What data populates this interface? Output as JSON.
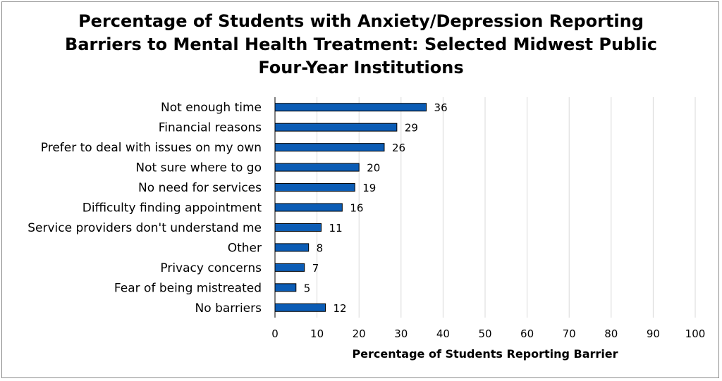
{
  "chart_data": {
    "type": "bar",
    "orientation": "horizontal",
    "title_lines": [
      "Percentage of Students with Anxiety/Depression Reporting",
      "Barriers to Mental Health Treatment: Selected Midwest Public",
      "Four-Year Institutions"
    ],
    "categories": [
      "Not enough time",
      "Financial reasons",
      "Prefer to deal with issues on my own",
      "Not sure where to go",
      "No need for services",
      "Difficulty finding appointment",
      "Service providers don't understand me",
      "Other",
      "Privacy concerns",
      "Fear of being mistreated",
      "No barriers"
    ],
    "values": [
      36,
      29,
      26,
      20,
      19,
      16,
      11,
      8,
      7,
      5,
      12
    ],
    "xlabel": "Percentage of Students Reporting Barrier",
    "ylabel": "",
    "xlim": [
      0,
      100
    ],
    "x_ticks": [
      0,
      10,
      20,
      30,
      40,
      50,
      60,
      70,
      80,
      90,
      100
    ],
    "grid": true,
    "legend": "none",
    "bar_color": "#0b5cb5",
    "bar_edge_color": "#000000",
    "grid_color": "#d9d9d9"
  }
}
